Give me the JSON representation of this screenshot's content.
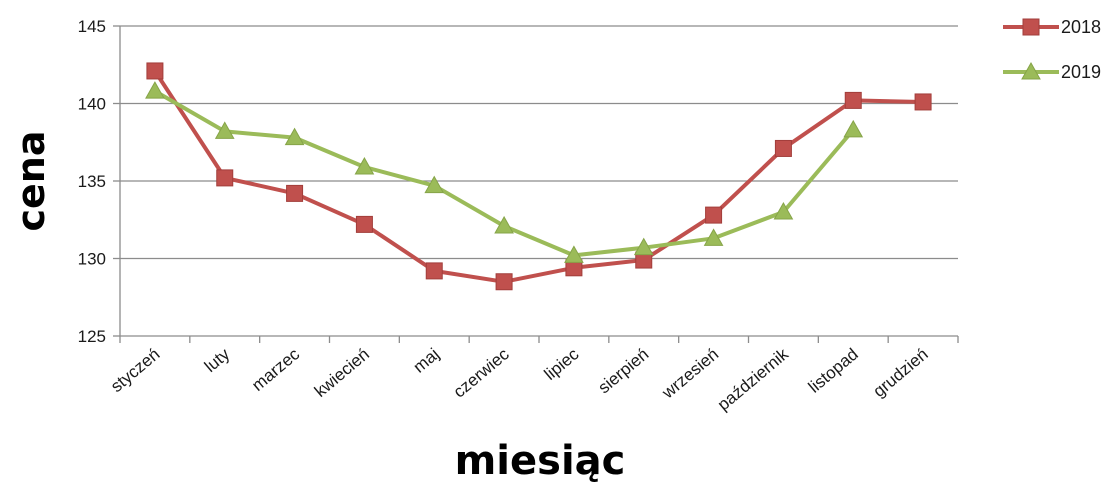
{
  "chart_data": {
    "type": "line",
    "xlabel": "miesiąc",
    "ylabel": "cena",
    "categories": [
      "styczeń",
      "luty",
      "marzec",
      "kwiecień",
      "maj",
      "czerwiec",
      "lipiec",
      "sierpień",
      "wrzesień",
      "październik",
      "listopad",
      "grudzień"
    ],
    "ylim": [
      125,
      145
    ],
    "yticks": [
      125,
      130,
      135,
      140,
      145
    ],
    "grid": true,
    "legend_position": "top-right",
    "series": [
      {
        "name": "2018",
        "color": "#c0504d",
        "marker": "square",
        "values": [
          142.1,
          135.2,
          134.2,
          132.2,
          129.2,
          128.5,
          129.4,
          129.9,
          132.8,
          137.1,
          140.2,
          140.1
        ]
      },
      {
        "name": "2019",
        "color": "#9bbb59",
        "marker": "triangle",
        "values": [
          140.8,
          138.2,
          137.8,
          135.9,
          134.7,
          132.1,
          130.2,
          130.7,
          131.3,
          133.0,
          138.3,
          null
        ]
      }
    ]
  }
}
